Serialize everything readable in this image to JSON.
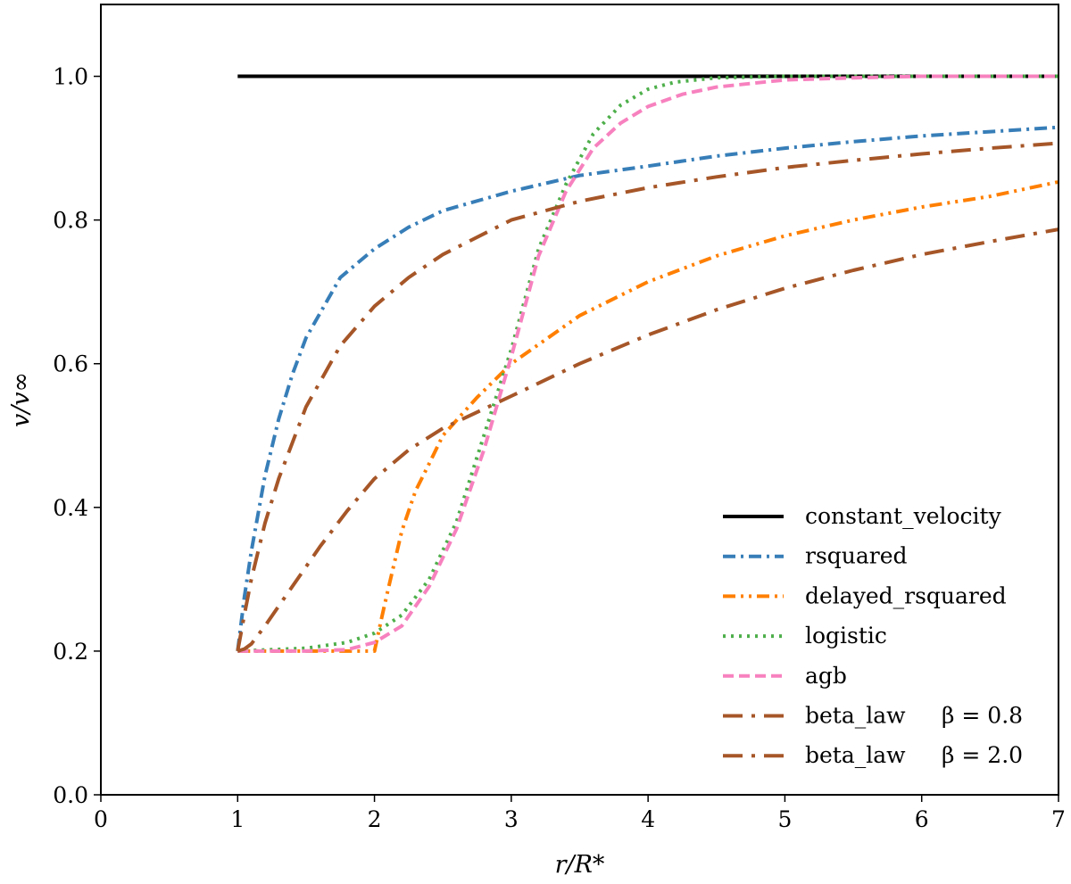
{
  "chart_data": {
    "type": "line",
    "xlabel": "r/R*",
    "ylabel": "v/v∞",
    "xlim": [
      0,
      7
    ],
    "ylim": [
      0,
      1.1
    ],
    "xticks": [
      "0",
      "1",
      "2",
      "3",
      "4",
      "5",
      "6",
      "7"
    ],
    "yticks": [
      "0.0",
      "0.2",
      "0.4",
      "0.6",
      "0.8",
      "1.0"
    ],
    "grid": false,
    "legend_position": "lower-right",
    "series": [
      {
        "name": "constant_velocity",
        "color": "#000000",
        "dash": "solid",
        "x": [
          1,
          7
        ],
        "y": [
          1.0,
          1.0
        ]
      },
      {
        "name": "rsquared",
        "color": "#377eb8",
        "dash": "dashdot",
        "x": [
          1,
          1.05,
          1.1,
          1.2,
          1.3,
          1.4,
          1.5,
          1.75,
          2,
          2.25,
          2.5,
          3,
          3.5,
          4,
          4.5,
          5,
          5.5,
          6,
          6.5,
          7
        ],
        "y": [
          0.2,
          0.276,
          0.339,
          0.444,
          0.523,
          0.585,
          0.636,
          0.72,
          0.76,
          0.79,
          0.813,
          0.84,
          0.862,
          0.875,
          0.889,
          0.9,
          0.909,
          0.917,
          0.923,
          0.929
        ]
      },
      {
        "name": "delayed_rsquared",
        "color": "#ff7f00",
        "dash": "dashdotdot",
        "x": [
          1,
          1.5,
          2,
          2.05,
          2.1,
          2.2,
          2.3,
          2.4,
          2.5,
          2.75,
          3,
          3.5,
          4,
          4.5,
          5,
          5.5,
          6,
          6.5,
          7
        ],
        "y": [
          0.2,
          0.2,
          0.2,
          0.244,
          0.286,
          0.367,
          0.423,
          0.461,
          0.5,
          0.553,
          0.6,
          0.667,
          0.714,
          0.75,
          0.778,
          0.8,
          0.818,
          0.833,
          0.853
        ]
      },
      {
        "name": "logistic",
        "color": "#4daf4a",
        "dash": "dotted",
        "x": [
          1,
          1.5,
          1.8,
          2,
          2.2,
          2.4,
          2.6,
          2.8,
          3,
          3.2,
          3.4,
          3.6,
          3.8,
          4,
          4.2,
          4.5,
          5,
          6,
          7
        ],
        "y": [
          0.2,
          0.204,
          0.212,
          0.225,
          0.25,
          0.3,
          0.38,
          0.5,
          0.62,
          0.76,
          0.85,
          0.92,
          0.96,
          0.982,
          0.992,
          0.998,
          1.0,
          1.0,
          1.0
        ]
      },
      {
        "name": "agb",
        "color": "#f781bf",
        "dash": "dashed",
        "x": [
          1,
          1.5,
          1.8,
          2,
          2.2,
          2.4,
          2.6,
          2.8,
          3,
          3.2,
          3.4,
          3.6,
          3.8,
          4,
          4.25,
          4.5,
          5,
          5.5,
          6,
          6.5,
          7
        ],
        "y": [
          0.2,
          0.2,
          0.202,
          0.212,
          0.235,
          0.29,
          0.37,
          0.48,
          0.61,
          0.75,
          0.84,
          0.9,
          0.935,
          0.958,
          0.975,
          0.985,
          0.995,
          0.998,
          1.0,
          1.0,
          1.0
        ]
      },
      {
        "name": "beta_law",
        "beta": "β = 0.8",
        "color": "#a65628",
        "dash": "longdashdot",
        "x": [
          1,
          1.05,
          1.1,
          1.2,
          1.3,
          1.4,
          1.5,
          1.75,
          2,
          2.25,
          2.5,
          3,
          3.5,
          4,
          4.5,
          5,
          5.5,
          6,
          6.5,
          7
        ],
        "y": [
          0.2,
          0.251,
          0.3,
          0.378,
          0.44,
          0.49,
          0.54,
          0.625,
          0.68,
          0.72,
          0.752,
          0.8,
          0.826,
          0.845,
          0.86,
          0.873,
          0.883,
          0.892,
          0.9,
          0.907
        ]
      },
      {
        "name": "beta_law",
        "beta": "β = 2.0",
        "color": "#a65628",
        "dash": "longdashdot",
        "x": [
          1,
          1.05,
          1.1,
          1.2,
          1.4,
          1.6,
          1.8,
          2,
          2.25,
          2.5,
          3,
          3.5,
          4,
          4.5,
          5,
          5.5,
          6,
          6.5,
          7
        ],
        "y": [
          0.2,
          0.203,
          0.21,
          0.235,
          0.29,
          0.345,
          0.395,
          0.44,
          0.48,
          0.51,
          0.555,
          0.6,
          0.64,
          0.675,
          0.705,
          0.73,
          0.752,
          0.77,
          0.787
        ]
      }
    ]
  }
}
